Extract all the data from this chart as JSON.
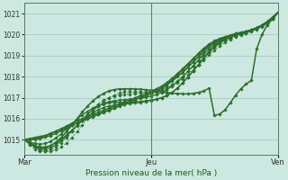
{
  "xlabel": "Pression niveau de la mer( hPa )",
  "background_color": "#cce8e0",
  "grid_color": "#a0c8be",
  "line_color": "#2d6e2d",
  "ylim": [
    1014.3,
    1021.5
  ],
  "yticks": [
    1015,
    1016,
    1017,
    1018,
    1019,
    1020,
    1021
  ],
  "xtick_labels": [
    "Mar",
    "Jeu",
    "Ven"
  ],
  "xtick_positions": [
    0,
    24,
    48
  ],
  "num_points": 49,
  "series": [
    {
      "y": [
        1015.0,
        1015.05,
        1015.1,
        1015.15,
        1015.2,
        1015.3,
        1015.4,
        1015.5,
        1015.6,
        1015.7,
        1015.8,
        1015.9,
        1016.0,
        1016.1,
        1016.2,
        1016.3,
        1016.4,
        1016.5,
        1016.6,
        1016.7,
        1016.8,
        1016.9,
        1017.0,
        1017.1,
        1017.2,
        1017.3,
        1017.45,
        1017.6,
        1017.8,
        1018.0,
        1018.2,
        1018.45,
        1018.7,
        1018.95,
        1019.2,
        1019.45,
        1019.6,
        1019.75,
        1019.85,
        1019.95,
        1020.05,
        1020.1,
        1020.15,
        1020.2,
        1020.3,
        1020.4,
        1020.55,
        1020.75,
        1021.05
      ],
      "style": "solid",
      "lw": 1.2
    },
    {
      "y": [
        1015.0,
        1015.02,
        1015.05,
        1015.1,
        1015.18,
        1015.28,
        1015.4,
        1015.52,
        1015.65,
        1015.78,
        1015.9,
        1016.0,
        1016.1,
        1016.2,
        1016.3,
        1016.4,
        1016.5,
        1016.6,
        1016.7,
        1016.8,
        1016.9,
        1017.0,
        1017.1,
        1017.2,
        1017.3,
        1017.42,
        1017.55,
        1017.72,
        1017.92,
        1018.15,
        1018.38,
        1018.62,
        1018.87,
        1019.12,
        1019.35,
        1019.55,
        1019.7,
        1019.82,
        1019.9,
        1019.97,
        1020.05,
        1020.1,
        1020.15,
        1020.22,
        1020.32,
        1020.45,
        1020.6,
        1020.8,
        1021.05
      ],
      "style": "solid",
      "lw": 1.0
    },
    {
      "y": [
        1015.0,
        1015.0,
        1015.02,
        1015.06,
        1015.12,
        1015.2,
        1015.3,
        1015.42,
        1015.55,
        1015.68,
        1015.8,
        1015.92,
        1016.02,
        1016.12,
        1016.22,
        1016.32,
        1016.42,
        1016.52,
        1016.62,
        1016.72,
        1016.82,
        1016.92,
        1017.02,
        1017.12,
        1017.22,
        1017.34,
        1017.48,
        1017.65,
        1017.85,
        1018.08,
        1018.32,
        1018.57,
        1018.82,
        1019.07,
        1019.3,
        1019.5,
        1019.65,
        1019.78,
        1019.87,
        1019.95,
        1020.02,
        1020.08,
        1020.15,
        1020.23,
        1020.33,
        1020.46,
        1020.62,
        1020.82,
        1021.05
      ],
      "style": "solid",
      "lw": 1.0
    },
    {
      "y": [
        1015.0,
        1014.9,
        1014.82,
        1014.78,
        1014.82,
        1014.92,
        1015.08,
        1015.28,
        1015.52,
        1015.75,
        1015.98,
        1016.18,
        1016.35,
        1016.5,
        1016.62,
        1016.7,
        1016.75,
        1016.78,
        1016.78,
        1016.78,
        1016.78,
        1016.8,
        1016.82,
        1016.85,
        1016.88,
        1016.92,
        1017.0,
        1017.1,
        1017.25,
        1017.45,
        1017.7,
        1017.98,
        1018.28,
        1018.58,
        1018.88,
        1019.18,
        1019.45,
        1019.65,
        1019.8,
        1019.92,
        1020.0,
        1020.07,
        1020.15,
        1020.22,
        1020.32,
        1020.45,
        1020.62,
        1020.82,
        1021.05
      ],
      "style": "solid",
      "lw": 0.9
    },
    {
      "y": [
        1015.0,
        1014.85,
        1014.72,
        1014.65,
        1014.65,
        1014.72,
        1014.85,
        1015.02,
        1015.22,
        1015.45,
        1015.68,
        1015.9,
        1016.1,
        1016.28,
        1016.42,
        1016.53,
        1016.6,
        1016.65,
        1016.68,
        1016.7,
        1016.72,
        1016.75,
        1016.78,
        1016.82,
        1016.87,
        1016.92,
        1017.0,
        1017.1,
        1017.25,
        1017.45,
        1017.7,
        1017.98,
        1018.28,
        1018.58,
        1018.88,
        1019.15,
        1019.4,
        1019.6,
        1019.75,
        1019.88,
        1019.98,
        1020.06,
        1020.14,
        1020.22,
        1020.32,
        1020.45,
        1020.62,
        1020.82,
        1021.05
      ],
      "style": "solid",
      "lw": 0.9
    },
    {
      "y": [
        1015.0,
        1014.82,
        1014.65,
        1014.55,
        1014.55,
        1014.62,
        1014.75,
        1014.95,
        1015.18,
        1015.42,
        1015.68,
        1015.95,
        1016.2,
        1016.42,
        1016.6,
        1016.72,
        1016.8,
        1016.85,
        1016.88,
        1016.9,
        1016.92,
        1016.95,
        1016.98,
        1017.02,
        1017.08,
        1017.15,
        1017.25,
        1017.38,
        1017.55,
        1017.75,
        1017.98,
        1018.25,
        1018.52,
        1018.8,
        1019.08,
        1019.32,
        1019.52,
        1019.68,
        1019.8,
        1019.9,
        1019.98,
        1020.05,
        1020.12,
        1020.2,
        1020.3,
        1020.43,
        1020.6,
        1020.82,
        1021.05
      ],
      "style": "solid",
      "lw": 0.9
    },
    {
      "y": [
        1015.0,
        1014.75,
        1014.55,
        1014.45,
        1014.45,
        1014.52,
        1014.65,
        1014.85,
        1015.1,
        1015.38,
        1015.65,
        1015.95,
        1016.22,
        1016.48,
        1016.7,
        1016.88,
        1017.0,
        1017.08,
        1017.13,
        1017.15,
        1017.17,
        1017.2,
        1017.22,
        1017.25,
        1017.28,
        1017.32,
        1017.38,
        1017.48,
        1017.62,
        1017.8,
        1018.0,
        1018.25,
        1018.5,
        1018.75,
        1019.0,
        1019.22,
        1019.42,
        1019.6,
        1019.72,
        1019.82,
        1019.92,
        1020.0,
        1020.08,
        1020.18,
        1020.28,
        1020.42,
        1020.6,
        1020.8,
        1021.05
      ],
      "style": "dotted",
      "lw": 0.9
    },
    {
      "y": [
        1015.0,
        1014.82,
        1014.65,
        1014.5,
        1014.45,
        1014.45,
        1014.52,
        1014.65,
        1014.85,
        1015.1,
        1015.38,
        1015.7,
        1016.02,
        1016.32,
        1016.58,
        1016.8,
        1016.98,
        1017.12,
        1017.22,
        1017.28,
        1017.3,
        1017.3,
        1017.28,
        1017.28,
        1017.28,
        1017.3,
        1017.35,
        1017.45,
        1017.58,
        1017.72,
        1017.9,
        1018.1,
        1018.32,
        1018.55,
        1018.78,
        1019.02,
        1019.25,
        1019.45,
        1019.62,
        1019.78,
        1019.9,
        1019.98,
        1020.06,
        1020.15,
        1020.25,
        1020.38,
        1020.55,
        1020.75,
        1021.05
      ],
      "style": "dotted",
      "lw": 0.8
    }
  ],
  "special_series": [
    {
      "y": [
        1015.0,
        1014.88,
        1014.72,
        1014.62,
        1014.62,
        1014.72,
        1014.88,
        1015.1,
        1015.38,
        1015.68,
        1016.0,
        1016.32,
        1016.6,
        1016.85,
        1017.05,
        1017.2,
        1017.32,
        1017.38,
        1017.42,
        1017.42,
        1017.42,
        1017.42,
        1017.4,
        1017.38,
        1017.35,
        1017.32,
        1017.28,
        1017.25,
        1017.22,
        1017.2,
        1017.18,
        1017.18,
        1017.2,
        1017.25,
        1017.32,
        1017.45,
        1016.15,
        1016.22,
        1016.42,
        1016.75,
        1017.12,
        1017.42,
        1017.65,
        1017.82,
        1019.32,
        1020.0,
        1020.45,
        1020.75,
        1021.05
      ],
      "style": "solid",
      "lw": 1.1
    }
  ]
}
